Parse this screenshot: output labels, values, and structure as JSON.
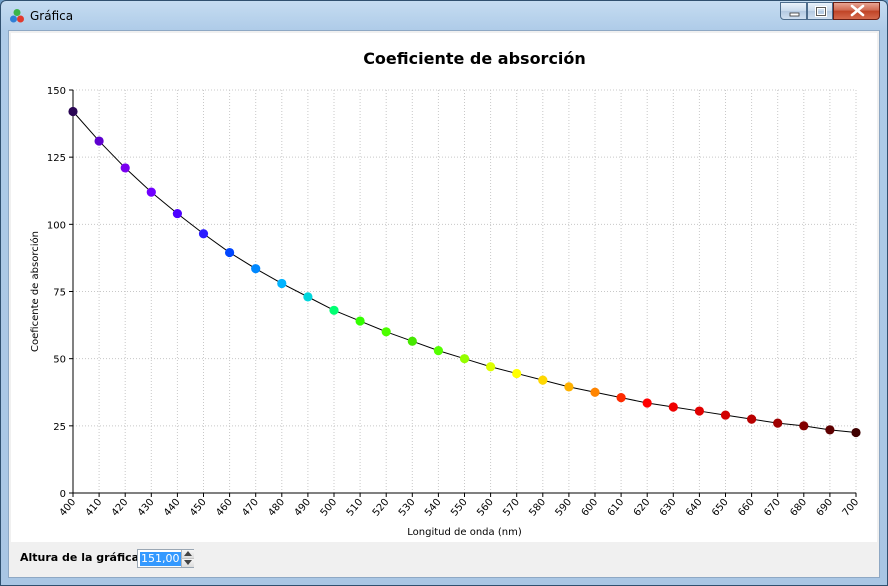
{
  "window": {
    "title": "Gráfica"
  },
  "controls": {
    "height_label": "Altura de la gráfica:",
    "height_value": "151,00"
  },
  "chart_data": {
    "type": "line",
    "title": "Coeficiente de absorción",
    "xlabel": "Longitud de onda (nm)",
    "ylabel": "Coeficente de absorción",
    "xlim": [
      400,
      700
    ],
    "ylim": [
      0,
      150
    ],
    "grid": true,
    "yticks": [
      0,
      25,
      50,
      75,
      100,
      125,
      150
    ],
    "xticks": [
      400,
      410,
      420,
      430,
      440,
      450,
      460,
      470,
      480,
      490,
      500,
      510,
      520,
      530,
      540,
      550,
      560,
      570,
      580,
      590,
      600,
      610,
      620,
      630,
      640,
      650,
      660,
      670,
      680,
      690,
      700
    ],
    "x": [
      400,
      410,
      420,
      430,
      440,
      450,
      460,
      470,
      480,
      490,
      500,
      510,
      520,
      530,
      540,
      550,
      560,
      570,
      580,
      590,
      600,
      610,
      620,
      630,
      640,
      650,
      660,
      670,
      680,
      690,
      700
    ],
    "y": [
      142,
      131,
      121,
      112,
      104,
      96.5,
      89.5,
      83.5,
      78,
      73,
      68,
      64,
      60,
      56.5,
      53,
      50,
      47,
      44.5,
      42,
      39.5,
      37.5,
      35.5,
      33.5,
      32,
      30.5,
      29,
      27.5,
      26,
      25,
      23.5,
      22.5
    ],
    "point_colors": [
      "#2a0654",
      "#5e00cf",
      "#7a00f0",
      "#7000ff",
      "#4d00ff",
      "#2c1cff",
      "#0046ff",
      "#0088ff",
      "#00b3ff",
      "#00d6dc",
      "#00ff72",
      "#33ff00",
      "#4cff00",
      "#46e800",
      "#55ff00",
      "#95ff00",
      "#ddff00",
      "#ffff00",
      "#ffd800",
      "#ffb100",
      "#ff8400",
      "#ff2b00",
      "#ff0000",
      "#f00000",
      "#e10000",
      "#d20000",
      "#b90000",
      "#9f0000",
      "#820000",
      "#5e0000",
      "#3f0000"
    ],
    "line_color": "#000000"
  }
}
